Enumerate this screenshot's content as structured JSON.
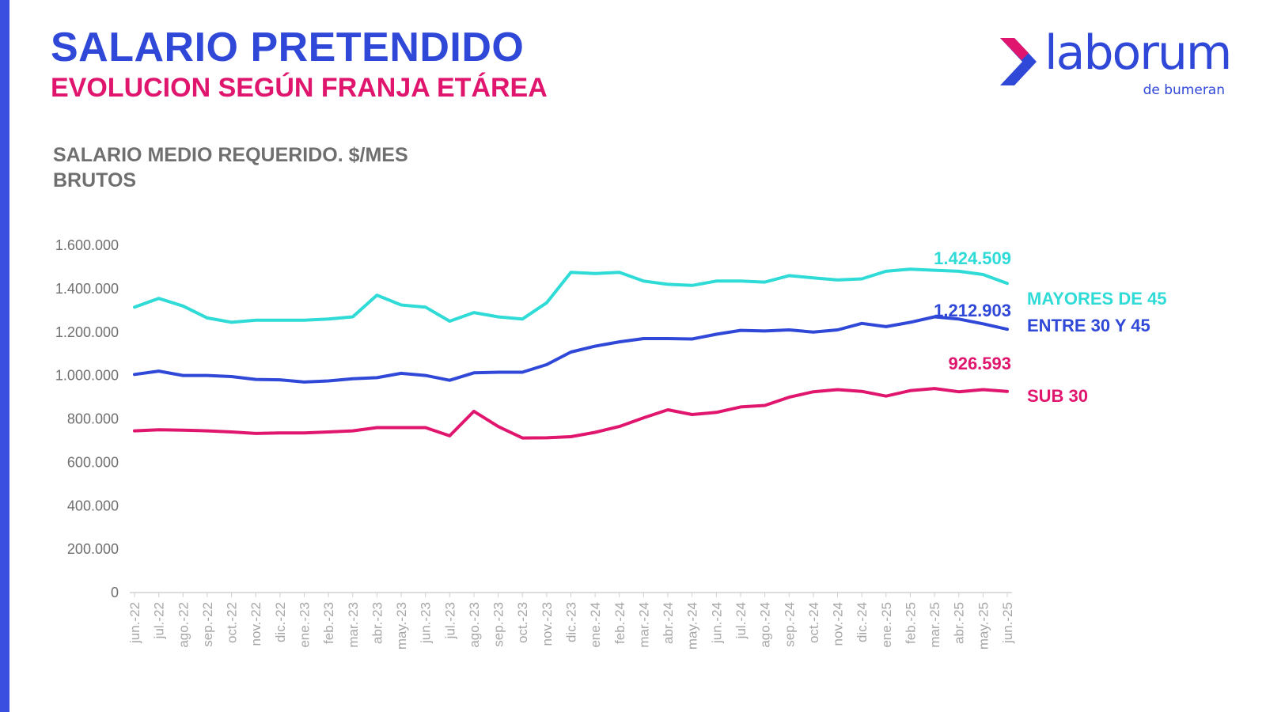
{
  "title": "SALARIO PRETENDIDO",
  "subtitle": "EVOLUCION SEGÚN FRANJA ETÁREA",
  "chart_heading": {
    "line1": "SALARIO MEDIO REQUERIDO. $/MES",
    "line2": "BRUTOS"
  },
  "logo": {
    "word": "laborum",
    "tagline": "de bumeran"
  },
  "colors": {
    "brand_blue": "#2f48d8",
    "brand_pink": "#e0156e",
    "accent_bar": "#3a4fe0"
  },
  "chart_data": {
    "type": "line",
    "ylim": [
      0,
      1600000
    ],
    "y_ticks": [
      "1.600.000",
      "1.400.000",
      "1.200.000",
      "1.000.000",
      "800.000",
      "600.000",
      "400.000",
      "200.000",
      "0"
    ],
    "y_tick_values": [
      1600000,
      1400000,
      1200000,
      1000000,
      800000,
      600000,
      400000,
      200000,
      0
    ],
    "grid": false,
    "categories": [
      "jun.-22",
      "jul.-22",
      "ago.-22",
      "sep.-22",
      "oct.-22",
      "nov.-22",
      "dic.-22",
      "ene.-23",
      "feb.-23",
      "mar.-23",
      "abr.-23",
      "may.-23",
      "jun.-23",
      "jul.-23",
      "ago.-23",
      "sep.-23",
      "oct.-23",
      "nov.-23",
      "dic.-23",
      "ene.-24",
      "feb.-24",
      "mar.-24",
      "abr.-24",
      "may.-24",
      "jun.-24",
      "jul.-24",
      "ago.-24",
      "sep.-24",
      "oct.-24",
      "nov.-24",
      "dic.-24",
      "ene.-25",
      "feb.-25",
      "mar.-25",
      "abr.-25",
      "may.-25",
      "jun.-25"
    ],
    "series": [
      {
        "name": "MAYORES DE 45",
        "color": "#2fdbd6",
        "end_label": "1.424.509",
        "values": [
          1315000,
          1355000,
          1320000,
          1265000,
          1245000,
          1255000,
          1255000,
          1255000,
          1260000,
          1270000,
          1370000,
          1325000,
          1315000,
          1250000,
          1290000,
          1270000,
          1260000,
          1335000,
          1475000,
          1470000,
          1475000,
          1435000,
          1420000,
          1415000,
          1435000,
          1435000,
          1430000,
          1460000,
          1450000,
          1440000,
          1445000,
          1480000,
          1490000,
          1485000,
          1480000,
          1465000,
          1424509
        ]
      },
      {
        "name": "ENTRE 30 Y 45",
        "color": "#2f48d8",
        "end_label": "1.212.903",
        "values": [
          1005000,
          1020000,
          1000000,
          1000000,
          995000,
          982000,
          980000,
          970000,
          975000,
          985000,
          990000,
          1010000,
          1000000,
          978000,
          1012000,
          1015000,
          1015000,
          1050000,
          1108000,
          1135000,
          1155000,
          1170000,
          1170000,
          1168000,
          1190000,
          1208000,
          1205000,
          1210000,
          1200000,
          1210000,
          1240000,
          1225000,
          1245000,
          1270000,
          1260000,
          1238000,
          1212903
        ]
      },
      {
        "name": "SUB 30",
        "color": "#e0156e",
        "end_label": "926.593",
        "values": [
          745000,
          750000,
          748000,
          745000,
          740000,
          733000,
          735000,
          735000,
          740000,
          745000,
          760000,
          760000,
          760000,
          722000,
          835000,
          765000,
          712000,
          713000,
          718000,
          738000,
          765000,
          805000,
          842000,
          820000,
          830000,
          855000,
          862000,
          900000,
          925000,
          935000,
          927000,
          905000,
          930000,
          940000,
          925000,
          935000,
          926593
        ]
      }
    ]
  }
}
